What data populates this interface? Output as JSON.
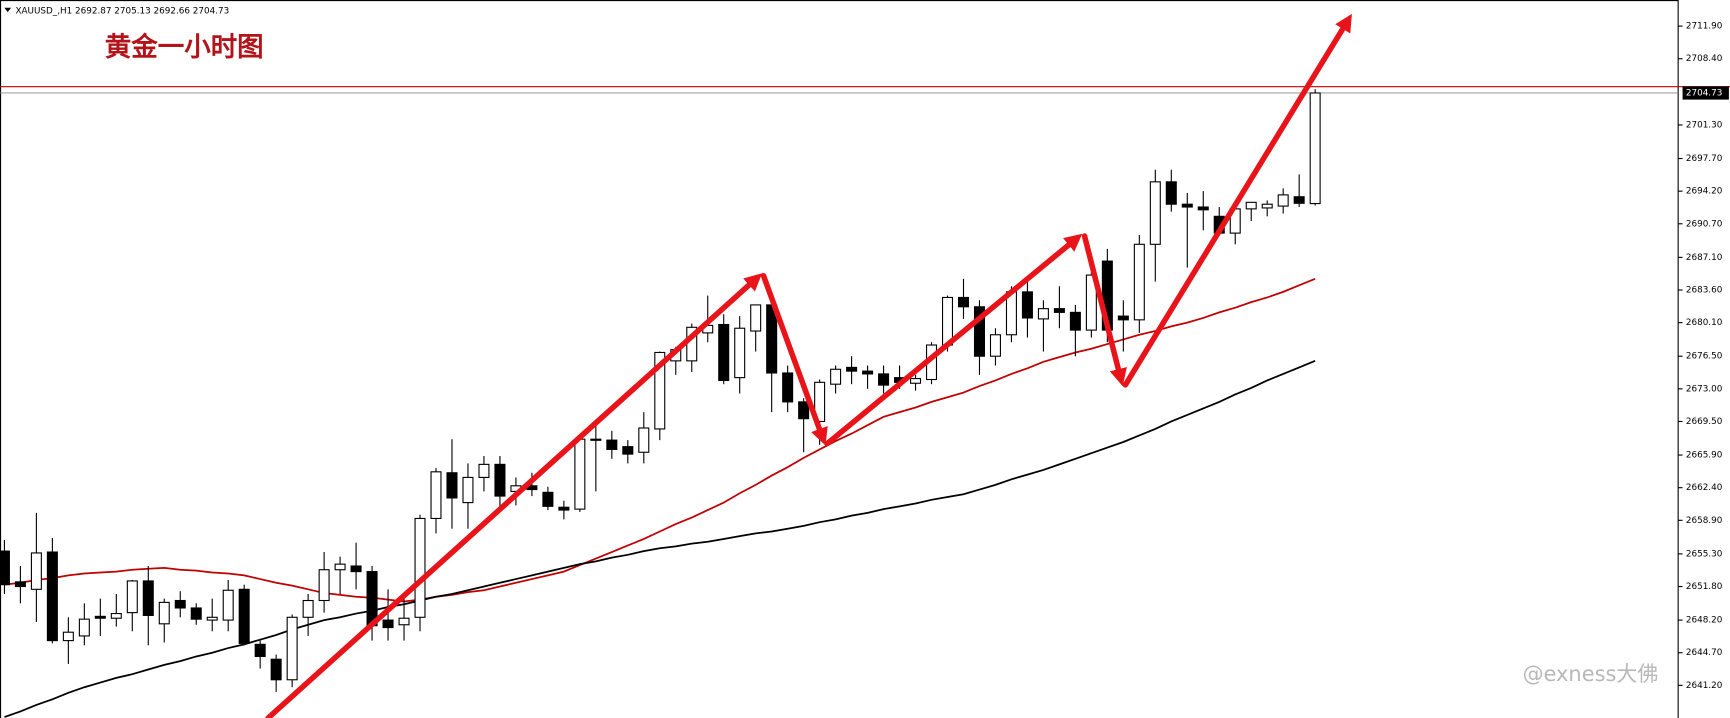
{
  "chart_data": {
    "type": "candlestick",
    "header": "XAUUSD_,H1 2692.87 2705.13 2692.66 2704.73",
    "title": "黄金一小时图",
    "watermark": "@exness大佛",
    "up_color": "#ffffff",
    "down_color": "#000000",
    "ylim": [
      2637.7,
      2714.7
    ],
    "yticks": [
      {
        "value": 2711.9,
        "label": "2711.90"
      },
      {
        "value": 2708.4,
        "label": "2708.40"
      },
      {
        "value": 2701.3,
        "label": "2701.30"
      },
      {
        "value": 2697.7,
        "label": "2697.70"
      },
      {
        "value": 2694.2,
        "label": "2694.20"
      },
      {
        "value": 2690.7,
        "label": "2690.70"
      },
      {
        "value": 2687.1,
        "label": "2687.10"
      },
      {
        "value": 2683.6,
        "label": "2683.60"
      },
      {
        "value": 2680.1,
        "label": "2680.10"
      },
      {
        "value": 2676.5,
        "label": "2676.50"
      },
      {
        "value": 2673.0,
        "label": "2673.00"
      },
      {
        "value": 2669.5,
        "label": "2669.50"
      },
      {
        "value": 2665.9,
        "label": "2665.90"
      },
      {
        "value": 2662.4,
        "label": "2662.40"
      },
      {
        "value": 2658.9,
        "label": "2658.90"
      },
      {
        "value": 2655.3,
        "label": "2655.30"
      },
      {
        "value": 2651.8,
        "label": "2651.80"
      },
      {
        "value": 2648.2,
        "label": "2648.20"
      },
      {
        "value": 2644.7,
        "label": "2644.70"
      },
      {
        "value": 2641.2,
        "label": "2641.20"
      }
    ],
    "current_price": {
      "value": 2704.73,
      "label": "2704.73"
    },
    "level_line": {
      "value": 2705.4,
      "color": "#c00000"
    },
    "open": [
      2655.6,
      2652.3,
      2651.5,
      2655.5,
      2646.0,
      2646.5,
      2648.6,
      2648.4,
      2649.0,
      2652.4,
      2647.8,
      2650.3,
      2649.5,
      2648.2,
      2648.2,
      2651.5,
      2645.6,
      2644.0,
      2641.8,
      2648.5,
      2650.3,
      2653.6,
      2654.0,
      2653.4,
      2648.2,
      2647.7,
      2648.5,
      2659.1,
      2664.0,
      2660.8,
      2663.5,
      2664.9,
      2662.0,
      2662.6,
      2661.9,
      2660.3,
      2660.1,
      2667.6,
      2667.5,
      2666.8,
      2666.2,
      2668.7,
      2676.0,
      2676.0,
      2679.0,
      2679.9,
      2674.2,
      2679.2,
      2682.0,
      2674.7,
      2671.6,
      2669.5,
      2673.5,
      2675.3,
      2674.9,
      2674.6,
      2674.2,
      2673.6,
      2674.0,
      2677.7,
      2682.8,
      2681.8,
      2676.5,
      2678.8,
      2683.4,
      2680.5,
      2681.6,
      2681.2,
      2679.3,
      2686.7,
      2680.8,
      2680.4,
      2688.5,
      2695.2,
      2692.8,
      2692.5,
      2691.5,
      2689.7,
      2692.3,
      2692.4,
      2692.6,
      2693.6,
      2692.87
    ],
    "high": [
      2656.8,
      2654.0,
      2659.7,
      2657.0,
      2648.5,
      2650.0,
      2650.5,
      2651.0,
      2652.5,
      2654.0,
      2650.5,
      2651.3,
      2650.0,
      2650.5,
      2652.5,
      2652.0,
      2646.0,
      2644.5,
      2648.8,
      2651.0,
      2655.5,
      2655.0,
      2656.5,
      2654.0,
      2651.5,
      2650.8,
      2659.5,
      2664.5,
      2667.6,
      2665.0,
      2665.8,
      2665.8,
      2663.5,
      2664.0,
      2662.5,
      2661.0,
      2668.0,
      2669.5,
      2668.5,
      2667.5,
      2670.5,
      2677.0,
      2677.5,
      2680.0,
      2683.0,
      2681.0,
      2680.8,
      2682.0,
      2682.5,
      2675.5,
      2672.0,
      2674.0,
      2675.5,
      2676.5,
      2675.5,
      2675.5,
      2675.5,
      2674.5,
      2678.0,
      2683.0,
      2684.8,
      2682.5,
      2679.5,
      2684.0,
      2685.0,
      2682.5,
      2684.0,
      2682.0,
      2685.5,
      2688.0,
      2682.5,
      2689.5,
      2696.5,
      2696.5,
      2694.0,
      2694.2,
      2692.5,
      2692.5,
      2693.0,
      2693.2,
      2694.5,
      2696.0,
      2705.13
    ],
    "low": [
      2651.0,
      2650.0,
      2648.0,
      2645.7,
      2643.5,
      2645.5,
      2646.5,
      2647.5,
      2647.0,
      2645.5,
      2645.8,
      2648.5,
      2647.7,
      2647.0,
      2647.0,
      2645.5,
      2643.0,
      2640.5,
      2641.0,
      2646.5,
      2649.0,
      2651.0,
      2651.5,
      2646.0,
      2646.0,
      2646.0,
      2647.0,
      2657.5,
      2658.0,
      2658.0,
      2662.0,
      2660.0,
      2660.5,
      2661.5,
      2660.0,
      2659.0,
      2659.8,
      2662.0,
      2665.5,
      2665.0,
      2665.0,
      2667.5,
      2674.5,
      2674.8,
      2678.0,
      2673.5,
      2672.5,
      2677.0,
      2670.5,
      2670.5,
      2666.2,
      2667.0,
      2672.5,
      2673.5,
      2673.0,
      2672.5,
      2673.0,
      2672.8,
      2673.5,
      2677.0,
      2680.5,
      2674.5,
      2675.5,
      2678.0,
      2678.5,
      2677.0,
      2679.5,
      2676.5,
      2678.5,
      2678.0,
      2677.0,
      2679.0,
      2684.5,
      2692.0,
      2686.0,
      2690.0,
      2689.5,
      2688.5,
      2691.0,
      2691.5,
      2691.8,
      2692.5,
      2692.66
    ],
    "close": [
      2652.0,
      2651.8,
      2655.4,
      2646.0,
      2646.9,
      2648.3,
      2648.4,
      2648.9,
      2652.4,
      2648.7,
      2650.1,
      2649.5,
      2648.3,
      2648.5,
      2651.4,
      2645.7,
      2644.3,
      2641.8,
      2648.5,
      2650.3,
      2653.6,
      2654.2,
      2653.4,
      2647.6,
      2647.4,
      2648.4,
      2659.1,
      2664.1,
      2661.3,
      2663.5,
      2664.9,
      2661.5,
      2662.6,
      2662.2,
      2660.4,
      2660.0,
      2667.6,
      2667.5,
      2666.5,
      2666.0,
      2668.8,
      2676.9,
      2677.2,
      2679.6,
      2679.8,
      2673.9,
      2679.5,
      2682.0,
      2674.7,
      2671.6,
      2669.8,
      2673.7,
      2675.1,
      2674.9,
      2674.6,
      2673.4,
      2673.7,
      2674.1,
      2677.7,
      2682.8,
      2681.8,
      2676.5,
      2678.8,
      2683.4,
      2680.6,
      2681.6,
      2681.2,
      2679.3,
      2685.2,
      2679.3,
      2680.4,
      2688.5,
      2695.2,
      2692.8,
      2692.5,
      2692.2,
      2689.7,
      2692.3,
      2693.0,
      2692.8,
      2693.8,
      2692.9,
      2704.73
    ],
    "moving_averages": [
      {
        "color": "#c00000",
        "values": [
          2652.0,
          2652.2,
          2652.5,
          2652.7,
          2653.0,
          2653.2,
          2653.3,
          2653.4,
          2653.6,
          2653.7,
          2653.8,
          2653.6,
          2653.5,
          2653.3,
          2653.2,
          2653.0,
          2652.6,
          2652.2,
          2651.9,
          2651.5,
          2651.1,
          2650.9,
          2650.7,
          2650.6,
          2650.4,
          2650.2,
          2650.4,
          2650.7,
          2650.9,
          2651.2,
          2651.4,
          2651.8,
          2652.2,
          2652.6,
          2653.0,
          2653.4,
          2654.1,
          2654.8,
          2655.5,
          2656.2,
          2656.9,
          2657.7,
          2658.5,
          2659.2,
          2660.0,
          2660.8,
          2661.8,
          2662.7,
          2663.7,
          2664.6,
          2665.6,
          2666.5,
          2667.4,
          2668.2,
          2669.1,
          2670.0,
          2670.5,
          2671.0,
          2671.6,
          2672.1,
          2672.6,
          2673.3,
          2673.9,
          2674.6,
          2675.2,
          2675.9,
          2676.4,
          2676.9,
          2677.3,
          2677.8,
          2678.3,
          2678.8,
          2679.2,
          2679.7,
          2680.1,
          2680.6,
          2681.2,
          2681.7,
          2682.3,
          2682.8,
          2683.4,
          2684.1,
          2684.8
        ]
      },
      {
        "color": "#000000",
        "values": [
          2637.8,
          2638.4,
          2639.1,
          2639.7,
          2640.4,
          2641.0,
          2641.5,
          2642.0,
          2642.4,
          2642.9,
          2643.4,
          2643.8,
          2644.3,
          2644.7,
          2645.2,
          2645.6,
          2646.1,
          2646.6,
          2647.2,
          2647.7,
          2648.2,
          2648.5,
          2648.9,
          2649.2,
          2649.6,
          2649.9,
          2650.3,
          2650.7,
          2651.0,
          2651.4,
          2651.8,
          2652.2,
          2652.6,
          2653.0,
          2653.4,
          2653.8,
          2654.2,
          2654.5,
          2654.9,
          2655.2,
          2655.6,
          2655.9,
          2656.1,
          2656.4,
          2656.6,
          2656.9,
          2657.2,
          2657.5,
          2657.7,
          2658.0,
          2658.3,
          2658.7,
          2659.0,
          2659.4,
          2659.7,
          2660.1,
          2660.4,
          2660.7,
          2661.1,
          2661.4,
          2661.7,
          2662.2,
          2662.7,
          2663.3,
          2663.8,
          2664.3,
          2664.9,
          2665.5,
          2666.1,
          2666.7,
          2667.3,
          2668.0,
          2668.7,
          2669.5,
          2670.2,
          2670.9,
          2671.6,
          2672.4,
          2673.1,
          2673.9,
          2674.6,
          2675.3,
          2676.0
        ]
      }
    ]
  }
}
